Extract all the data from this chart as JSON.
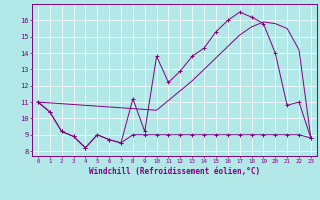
{
  "xlabel": "Windchill (Refroidissement éolien,°C)",
  "bg_color": "#b3e8e8",
  "line_color": "#800080",
  "grid_color": "#ffffff",
  "xlim": [
    -0.5,
    23.5
  ],
  "ylim": [
    7.7,
    17.0
  ],
  "yticks": [
    8,
    9,
    10,
    11,
    12,
    13,
    14,
    15,
    16
  ],
  "xticks": [
    0,
    1,
    2,
    3,
    4,
    5,
    6,
    7,
    8,
    9,
    10,
    11,
    12,
    13,
    14,
    15,
    16,
    17,
    18,
    19,
    20,
    21,
    22,
    23
  ],
  "series1_x": [
    0,
    1,
    2,
    3,
    4,
    5,
    6,
    7,
    8,
    9,
    10,
    11,
    12,
    13,
    14,
    15,
    16,
    17,
    18,
    19,
    20,
    21,
    22,
    23
  ],
  "series1_y": [
    11.0,
    10.4,
    9.2,
    8.9,
    8.2,
    9.0,
    8.7,
    8.5,
    9.0,
    9.0,
    9.0,
    9.0,
    9.0,
    9.0,
    9.0,
    9.0,
    9.0,
    9.0,
    9.0,
    9.0,
    9.0,
    9.0,
    9.0,
    8.8
  ],
  "series2_x": [
    0,
    1,
    2,
    3,
    4,
    5,
    6,
    7,
    8,
    9,
    10,
    11,
    12,
    13,
    14,
    15,
    16,
    17,
    18,
    19,
    20,
    21,
    22,
    23
  ],
  "series2_y": [
    11.0,
    10.4,
    9.2,
    8.9,
    8.2,
    9.0,
    8.7,
    8.5,
    11.2,
    9.2,
    13.8,
    12.2,
    12.9,
    13.8,
    14.3,
    15.3,
    16.0,
    16.5,
    16.2,
    15.8,
    14.0,
    10.8,
    11.0,
    8.8
  ],
  "series3_x": [
    0,
    10,
    11,
    12,
    13,
    14,
    15,
    16,
    17,
    18,
    19,
    20,
    21,
    22,
    23
  ],
  "series3_y": [
    11.0,
    10.5,
    11.1,
    11.7,
    12.3,
    13.0,
    13.7,
    14.4,
    15.1,
    15.6,
    15.9,
    15.8,
    15.5,
    14.2,
    8.8
  ]
}
